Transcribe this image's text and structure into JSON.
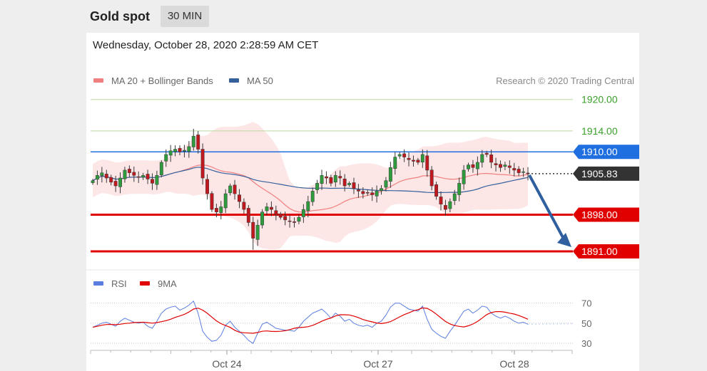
{
  "header": {
    "title": "Gold spot",
    "timeframe": "30 MIN"
  },
  "timestamp": "Wednesday, October 28, 2020 2:28:59 AM CET",
  "legend": {
    "ma20": "MA 20 + Bollinger Bands",
    "ma50": "MA 50",
    "credit": "Research © 2020 Trading Central"
  },
  "colors": {
    "ma20": "#f08080",
    "ma50": "#34609c",
    "band": "#fde3e3",
    "candle": "#3a3a3a",
    "up": "#2e9b3d",
    "down": "#c0181e",
    "resistance_line": "#b8d9a0",
    "resistance_text": "#3aa02a",
    "pivot": "#1f6fe0",
    "support": "#e00000",
    "current": "#333333",
    "arrow": "#2f5f9e",
    "rsi": "#5a7de0",
    "rsi_ma": "#e00000"
  },
  "chart_data": [
    {
      "type": "candlestick",
      "y_range": [
        1888,
        1922
      ],
      "x_ticks": [
        "Oct 24",
        "Oct 27",
        "Oct 28"
      ],
      "levels": [
        {
          "label": "1920.00",
          "value": 1920.0,
          "kind": "resistance"
        },
        {
          "label": "1914.00",
          "value": 1914.0,
          "kind": "resistance"
        },
        {
          "label": "1910.00",
          "value": 1910.0,
          "kind": "pivot"
        },
        {
          "label": "1905.83",
          "value": 1905.83,
          "kind": "current"
        },
        {
          "label": "1898.00",
          "value": 1898.0,
          "kind": "support"
        },
        {
          "label": "1891.00",
          "value": 1891.0,
          "kind": "support"
        }
      ],
      "close": [
        1904.5,
        1905.5,
        1906.0,
        1905.0,
        1904.2,
        1903.5,
        1905.0,
        1906.5,
        1906.0,
        1905.5,
        1905.2,
        1905.5,
        1904.8,
        1904.0,
        1905.5,
        1908.0,
        1909.5,
        1910.2,
        1910.5,
        1910.0,
        1910.3,
        1911.0,
        1913.0,
        1910.5,
        1905.0,
        1902.0,
        1899.0,
        1898.5,
        1899.5,
        1902.0,
        1903.5,
        1902.0,
        1900.5,
        1899.0,
        1896.5,
        1893.5,
        1896.0,
        1898.5,
        1899.5,
        1899.0,
        1898.0,
        1897.5,
        1897.0,
        1896.8,
        1896.5,
        1897.5,
        1899.0,
        1900.5,
        1902.5,
        1904.0,
        1905.5,
        1905.0,
        1904.0,
        1905.5,
        1905.0,
        1903.5,
        1904.0,
        1903.0,
        1902.5,
        1902.0,
        1902.2,
        1901.8,
        1902.5,
        1903.0,
        1904.5,
        1907.0,
        1909.0,
        1909.5,
        1909.0,
        1908.5,
        1908.2,
        1908.0,
        1909.5,
        1906.5,
        1903.5,
        1901.5,
        1900.0,
        1899.0,
        1900.5,
        1902.0,
        1904.0,
        1906.5,
        1907.5,
        1907.0,
        1908.0,
        1909.5,
        1909.5,
        1908.0,
        1907.5,
        1907.0,
        1907.5,
        1907.0,
        1906.5,
        1906.0,
        1906.2,
        1905.83
      ],
      "rsi": {
        "labels": [
          "RSI",
          "9MA"
        ],
        "levels": [
          70,
          50,
          30
        ],
        "y_range": [
          28,
          74
        ],
        "values": [
          46,
          48,
          50,
          51,
          49,
          47,
          52,
          55,
          53,
          51,
          50,
          51,
          47,
          45,
          52,
          60,
          64,
          66,
          67,
          63,
          65,
          68,
          72,
          60,
          42,
          36,
          32,
          33,
          38,
          48,
          52,
          46,
          42,
          38,
          33,
          30,
          40,
          49,
          51,
          48,
          45,
          44,
          43,
          43,
          42,
          46,
          52,
          56,
          60,
          62,
          64,
          60,
          55,
          60,
          57,
          52,
          54,
          50,
          48,
          47,
          48,
          46,
          50,
          52,
          58,
          66,
          70,
          70,
          67,
          64,
          63,
          62,
          67,
          54,
          44,
          40,
          37,
          35,
          42,
          48,
          55,
          62,
          64,
          60,
          63,
          67,
          66,
          60,
          57,
          55,
          57,
          55,
          52,
          50,
          51,
          49
        ]
      }
    }
  ]
}
